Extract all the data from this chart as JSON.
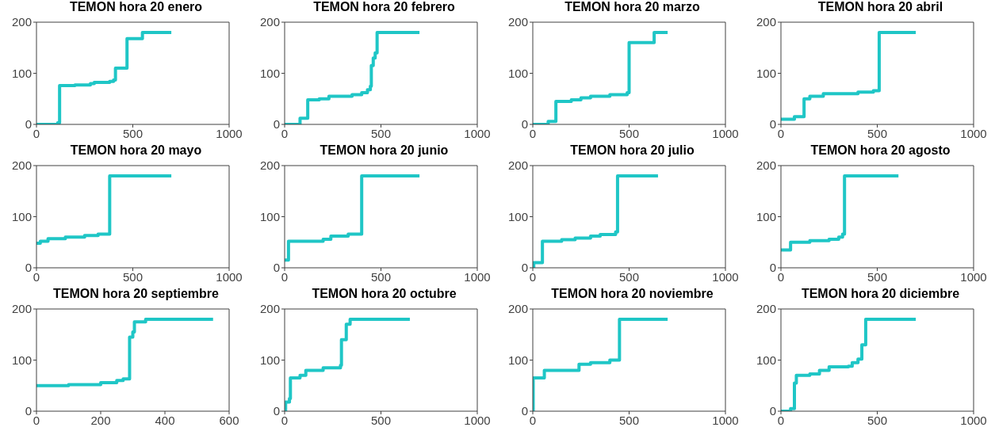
{
  "chart_data": [
    {
      "type": "step",
      "title": "TEMON hora 20 enero",
      "xlim": [
        0,
        1000
      ],
      "xticks": [
        0,
        500,
        1000
      ],
      "ylim": [
        0,
        200
      ],
      "yticks": [
        0,
        100,
        200
      ],
      "grid": false,
      "x": [
        0,
        110,
        120,
        200,
        280,
        300,
        380,
        400,
        410,
        470,
        550,
        700
      ],
      "series": [
        {
          "color": "#1fc6c6",
          "values": [
            0,
            3,
            76,
            77,
            80,
            82,
            84,
            87,
            110,
            168,
            180,
            180
          ]
        }
      ]
    },
    {
      "type": "step",
      "title": "TEMON hora 20 febrero",
      "xlim": [
        0,
        1000
      ],
      "xticks": [
        0,
        500,
        1000
      ],
      "ylim": [
        0,
        200
      ],
      "yticks": [
        0,
        100,
        200
      ],
      "grid": false,
      "x": [
        0,
        80,
        120,
        180,
        230,
        350,
        400,
        430,
        445,
        450,
        460,
        470,
        480,
        700
      ],
      "series": [
        {
          "color": "#1fc6c6",
          "values": [
            0,
            12,
            48,
            50,
            55,
            58,
            62,
            68,
            75,
            115,
            130,
            140,
            180,
            180
          ]
        }
      ]
    },
    {
      "type": "step",
      "title": "TEMON hora 20 marzo",
      "xlim": [
        0,
        1000
      ],
      "xticks": [
        0,
        500,
        1000
      ],
      "ylim": [
        0,
        200
      ],
      "yticks": [
        0,
        100,
        200
      ],
      "grid": false,
      "x": [
        0,
        80,
        120,
        200,
        250,
        300,
        400,
        490,
        500,
        630,
        700
      ],
      "series": [
        {
          "color": "#1fc6c6",
          "values": [
            0,
            6,
            45,
            48,
            52,
            55,
            58,
            62,
            160,
            180,
            180
          ]
        }
      ]
    },
    {
      "type": "step",
      "title": "TEMON hora 20 abril",
      "xlim": [
        0,
        1000
      ],
      "xticks": [
        0,
        500,
        1000
      ],
      "ylim": [
        0,
        200
      ],
      "yticks": [
        0,
        100,
        200
      ],
      "grid": false,
      "x": [
        0,
        70,
        120,
        150,
        220,
        400,
        480,
        510,
        700
      ],
      "series": [
        {
          "color": "#1fc6c6",
          "values": [
            10,
            15,
            50,
            55,
            60,
            63,
            66,
            180,
            180
          ]
        }
      ]
    },
    {
      "type": "step",
      "title": "TEMON hora 20 mayo",
      "xlim": [
        0,
        1000
      ],
      "xticks": [
        0,
        500,
        1000
      ],
      "ylim": [
        0,
        200
      ],
      "yticks": [
        0,
        100,
        200
      ],
      "grid": false,
      "x": [
        0,
        20,
        60,
        150,
        250,
        320,
        380,
        700
      ],
      "series": [
        {
          "color": "#1fc6c6",
          "values": [
            48,
            52,
            57,
            60,
            63,
            66,
            180,
            180
          ]
        }
      ]
    },
    {
      "type": "step",
      "title": "TEMON hora 20 junio",
      "xlim": [
        0,
        1000
      ],
      "xticks": [
        0,
        500,
        1000
      ],
      "ylim": [
        0,
        200
      ],
      "yticks": [
        0,
        100,
        200
      ],
      "grid": false,
      "x": [
        0,
        20,
        200,
        240,
        330,
        400,
        700
      ],
      "series": [
        {
          "color": "#1fc6c6",
          "values": [
            15,
            52,
            56,
            62,
            66,
            180,
            180
          ]
        }
      ]
    },
    {
      "type": "step",
      "title": "TEMON hora 20 julio",
      "xlim": [
        0,
        1000
      ],
      "xticks": [
        0,
        500,
        1000
      ],
      "ylim": [
        0,
        200
      ],
      "yticks": [
        0,
        100,
        200
      ],
      "grid": false,
      "x": [
        0,
        5,
        50,
        150,
        220,
        300,
        350,
        430,
        440,
        650
      ],
      "series": [
        {
          "color": "#1fc6c6",
          "values": [
            0,
            10,
            52,
            55,
            58,
            62,
            65,
            70,
            180,
            180
          ]
        }
      ]
    },
    {
      "type": "step",
      "title": "TEMON hora 20 agosto",
      "xlim": [
        0,
        1000
      ],
      "xticks": [
        0,
        500,
        1000
      ],
      "ylim": [
        0,
        200
      ],
      "yticks": [
        0,
        100,
        200
      ],
      "grid": false,
      "x": [
        0,
        50,
        150,
        250,
        300,
        320,
        330,
        610
      ],
      "series": [
        {
          "color": "#1fc6c6",
          "values": [
            35,
            50,
            53,
            56,
            60,
            66,
            180,
            180
          ]
        }
      ]
    },
    {
      "type": "step",
      "title": "TEMON hora 20 septiembre",
      "xlim": [
        0,
        600
      ],
      "xticks": [
        0,
        200,
        400,
        600
      ],
      "ylim": [
        0,
        200
      ],
      "yticks": [
        0,
        100,
        200
      ],
      "grid": false,
      "x": [
        0,
        100,
        200,
        250,
        270,
        290,
        300,
        305,
        340,
        550
      ],
      "series": [
        {
          "color": "#1fc6c6",
          "values": [
            50,
            52,
            56,
            60,
            63,
            145,
            155,
            175,
            180,
            180
          ]
        }
      ]
    },
    {
      "type": "step",
      "title": "TEMON hora 20 octubre",
      "xlim": [
        0,
        1000
      ],
      "xticks": [
        0,
        500,
        1000
      ],
      "ylim": [
        0,
        200
      ],
      "yticks": [
        0,
        100,
        200
      ],
      "grid": false,
      "x": [
        0,
        5,
        25,
        30,
        80,
        110,
        200,
        290,
        295,
        320,
        340,
        650
      ],
      "series": [
        {
          "color": "#1fc6c6",
          "values": [
            0,
            18,
            25,
            65,
            70,
            80,
            85,
            90,
            140,
            170,
            180,
            180
          ]
        }
      ]
    },
    {
      "type": "step",
      "title": "TEMON hora 20 noviembre",
      "xlim": [
        0,
        1000
      ],
      "xticks": [
        0,
        500,
        1000
      ],
      "ylim": [
        0,
        200
      ],
      "yticks": [
        0,
        100,
        200
      ],
      "grid": false,
      "x": [
        0,
        2,
        60,
        240,
        300,
        400,
        450,
        700
      ],
      "series": [
        {
          "color": "#1fc6c6",
          "values": [
            0,
            65,
            80,
            92,
            95,
            100,
            180,
            180
          ]
        }
      ]
    },
    {
      "type": "step",
      "title": "TEMON hora 20 diciembre",
      "xlim": [
        0,
        1000
      ],
      "xticks": [
        0,
        500,
        1000
      ],
      "ylim": [
        0,
        200
      ],
      "yticks": [
        0,
        100,
        200
      ],
      "grid": false,
      "x": [
        0,
        50,
        70,
        80,
        150,
        200,
        250,
        350,
        370,
        400,
        420,
        440,
        700
      ],
      "series": [
        {
          "color": "#1fc6c6",
          "values": [
            0,
            5,
            55,
            70,
            73,
            80,
            87,
            88,
            95,
            102,
            130,
            180,
            180
          ]
        }
      ]
    }
  ]
}
